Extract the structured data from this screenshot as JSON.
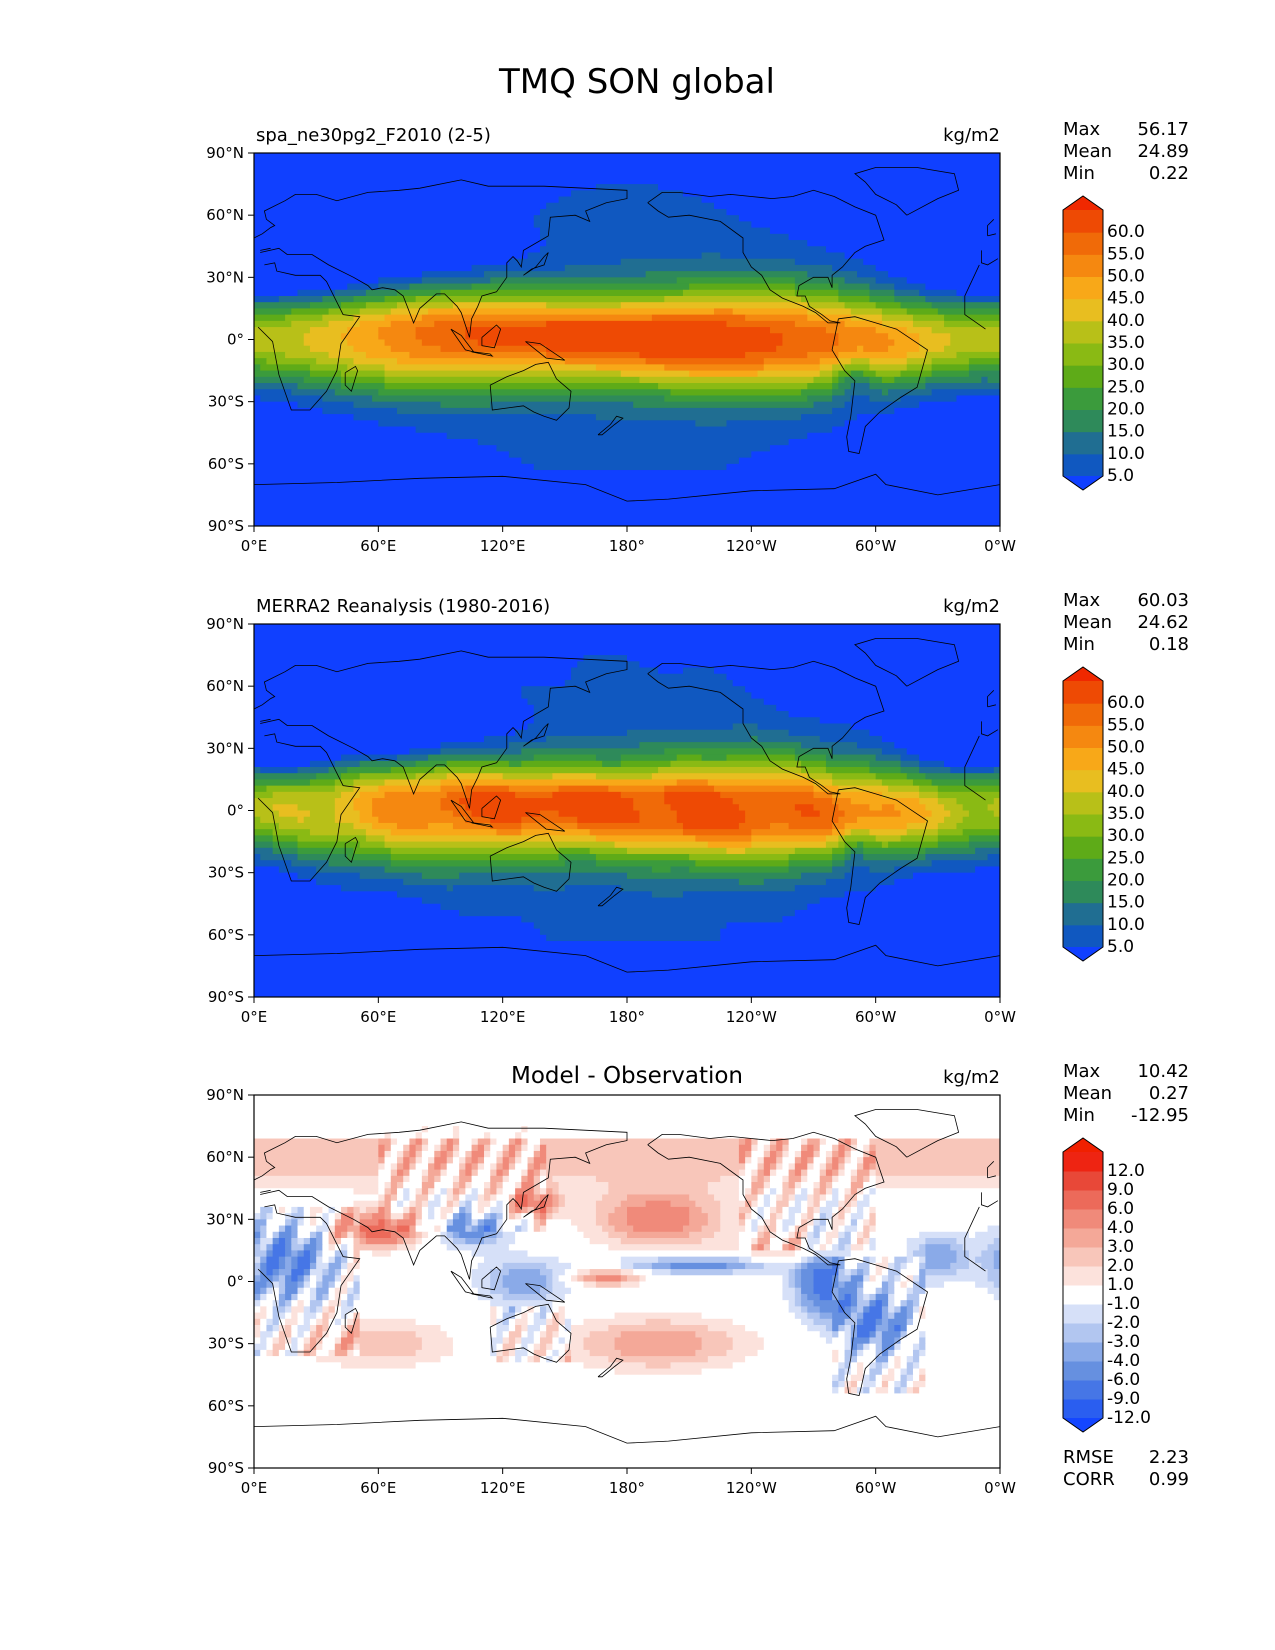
{
  "figure_title": "TMQ SON global",
  "chart_data": [
    {
      "type": "heatmap",
      "title": "spa_ne30pg2_F2010 (2-5)",
      "units": "kg/m2",
      "x_ticks": [
        "0°E",
        "60°E",
        "120°E",
        "180°",
        "120°W",
        "60°W",
        "0°W"
      ],
      "y_ticks": [
        "90°N",
        "60°N",
        "30°N",
        "0°",
        "30°S",
        "60°S",
        "90°S"
      ],
      "xlim": [
        0,
        360
      ],
      "ylim": [
        -90,
        90
      ],
      "stats": [
        {
          "label": "Max",
          "value": "56.17"
        },
        {
          "label": "Mean",
          "value": "24.89"
        },
        {
          "label": "Min",
          "value": "0.22"
        }
      ],
      "colorbar": {
        "levels": [
          "60.0",
          "55.0",
          "50.0",
          "45.0",
          "40.0",
          "35.0",
          "30.0",
          "25.0",
          "20.0",
          "15.0",
          "10.0",
          "5.0"
        ],
        "colors": [
          "#1040ff",
          "#1058c0",
          "#206e92",
          "#2e8a5a",
          "#3b9b3c",
          "#5eab18",
          "#8aba14",
          "#b8c018",
          "#e8be20",
          "#f8a818",
          "#f58810",
          "#f06a08",
          "#ee4a04",
          "#f02800"
        ]
      },
      "field": "tmq_model"
    },
    {
      "type": "heatmap",
      "title": "MERRA2 Reanalysis (1980-2016)",
      "units": "kg/m2",
      "x_ticks": [
        "0°E",
        "60°E",
        "120°E",
        "180°",
        "120°W",
        "60°W",
        "0°W"
      ],
      "y_ticks": [
        "90°N",
        "60°N",
        "30°N",
        "0°",
        "30°S",
        "60°S",
        "90°S"
      ],
      "xlim": [
        0,
        360
      ],
      "ylim": [
        -90,
        90
      ],
      "stats": [
        {
          "label": "Max",
          "value": "60.03"
        },
        {
          "label": "Mean",
          "value": "24.62"
        },
        {
          "label": "Min",
          "value": "0.18"
        }
      ],
      "colorbar": {
        "levels": [
          "60.0",
          "55.0",
          "50.0",
          "45.0",
          "40.0",
          "35.0",
          "30.0",
          "25.0",
          "20.0",
          "15.0",
          "10.0",
          "5.0"
        ],
        "colors": [
          "#1040ff",
          "#1058c0",
          "#206e92",
          "#2e8a5a",
          "#3b9b3c",
          "#5eab18",
          "#8aba14",
          "#b8c018",
          "#e8be20",
          "#f8a818",
          "#f58810",
          "#f06a08",
          "#ee4a04",
          "#f02800"
        ]
      },
      "field": "tmq_obs"
    },
    {
      "type": "heatmap",
      "title": "Model - Observation",
      "units": "kg/m2",
      "x_ticks": [
        "0°E",
        "60°E",
        "120°E",
        "180°",
        "120°W",
        "60°W",
        "0°W"
      ],
      "y_ticks": [
        "90°N",
        "60°N",
        "30°N",
        "0°",
        "30°S",
        "60°S",
        "90°S"
      ],
      "xlim": [
        0,
        360
      ],
      "ylim": [
        -90,
        90
      ],
      "stats": [
        {
          "label": "Max",
          "value": "10.42"
        },
        {
          "label": "Mean",
          "value": "0.27"
        },
        {
          "label": "Min",
          "value": "-12.95"
        }
      ],
      "extra_stats": [
        {
          "label": "RMSE",
          "value": "2.23"
        },
        {
          "label": "CORR",
          "value": "0.99"
        }
      ],
      "colorbar": {
        "levels": [
          "12.0",
          "9.0",
          "6.0",
          "4.0",
          "3.0",
          "2.0",
          "1.0",
          "-1.0",
          "-2.0",
          "-3.0",
          "-4.0",
          "-6.0",
          "-9.0",
          "-12.0"
        ],
        "colors": [
          "#1446ff",
          "#2a5ef0",
          "#4676e6",
          "#6690e0",
          "#8aaae8",
          "#b2c6f0",
          "#d6e0f8",
          "#ffffff",
          "#fce2dc",
          "#f8c6ba",
          "#f4a898",
          "#f08a7a",
          "#ec6a5a",
          "#e84838",
          "#ee2412",
          "#f02000"
        ]
      },
      "field": "tmq_diff"
    }
  ]
}
